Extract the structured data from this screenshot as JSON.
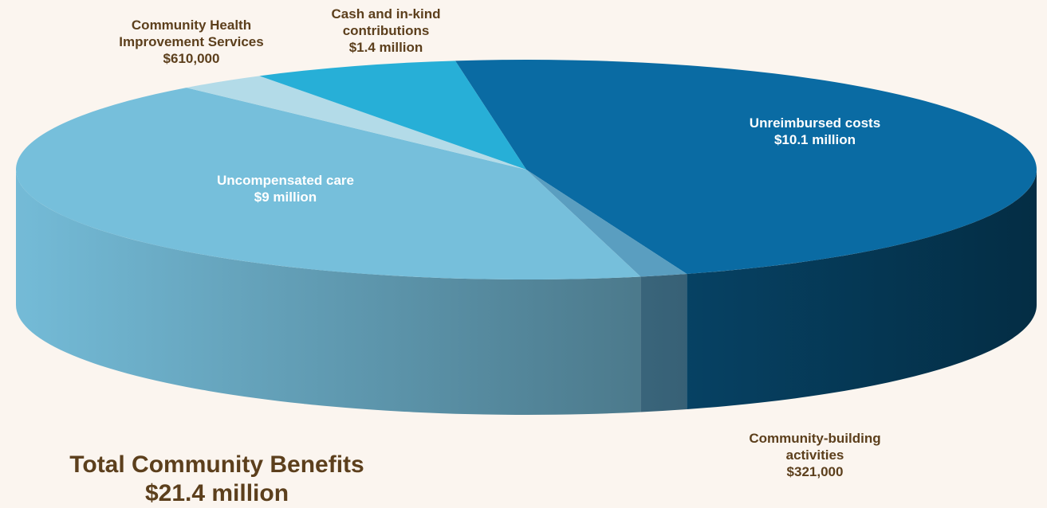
{
  "chart_data": {
    "type": "pie3d",
    "categories": [
      "Unreimbursed costs",
      "Community-building activities",
      "Uncompensated care",
      "Community Health Improvement Services",
      "Cash and in-kind contributions"
    ],
    "values": [
      10100000,
      321000,
      9000000,
      610000,
      1400000
    ],
    "value_labels": [
      "$10.1 million",
      "$321,000",
      "$9 million",
      "$610,000",
      "$1.4 million"
    ],
    "colors": [
      "#0a6ba3",
      "#5a9ec0",
      "#76bfdb",
      "#b3dbe8",
      "#27afd7"
    ],
    "total_title": "Total Community Benefits",
    "total_label": "$21.4 million"
  }
}
